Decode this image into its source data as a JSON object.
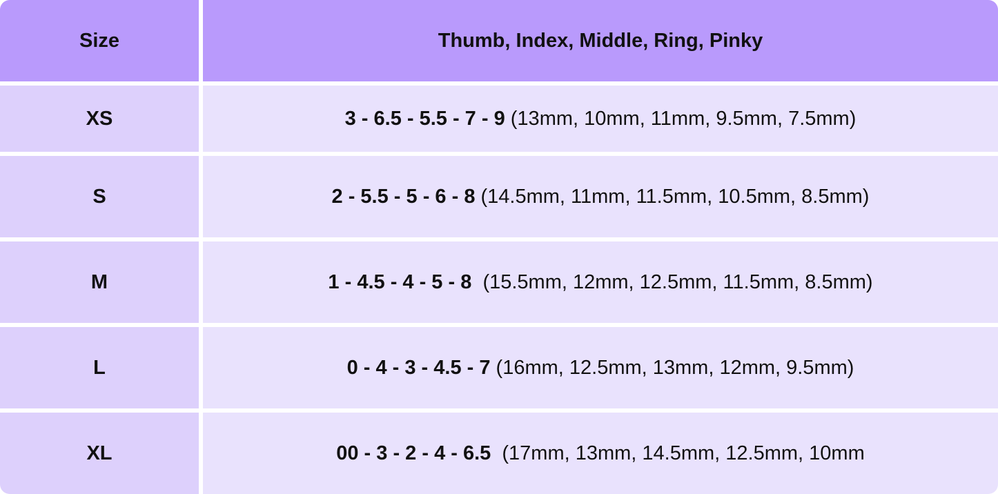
{
  "header": {
    "size": "Size",
    "fingers": "Thumb, Index, Middle, Ring, Pinky"
  },
  "colors": {
    "header_bg": "#b99afc",
    "size_col_bg": "#ddd0fc",
    "value_col_bg": "#e9e2fd"
  },
  "rows": [
    {
      "size": "XS",
      "numbers": "3 - 6.5 - 5.5 - 7 - 9",
      "mm": " (13mm, 10mm, 11mm, 9.5mm, 7.5mm)"
    },
    {
      "size": "S",
      "numbers": "2 - 5.5 - 5 - 6 - 8",
      "mm": " (14.5mm, 11mm, 11.5mm, 10.5mm, 8.5mm)"
    },
    {
      "size": "M",
      "numbers": "1 - 4.5 - 4 - 5 - 8",
      "mm": "  (15.5mm, 12mm, 12.5mm, 11.5mm, 8.5mm)"
    },
    {
      "size": "L",
      "numbers": "0 - 4 - 3 - 4.5 - 7",
      "mm": " (16mm, 12.5mm, 13mm, 12mm, 9.5mm)"
    },
    {
      "size": "XL",
      "numbers": "00 - 3 - 2 - 4 - 6.5",
      "mm": "  (17mm, 13mm, 14.5mm, 12.5mm, 10mm"
    }
  ]
}
